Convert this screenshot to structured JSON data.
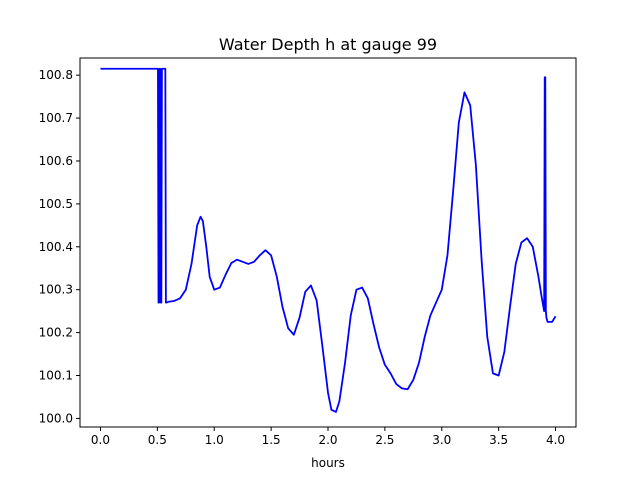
{
  "chart_data": {
    "type": "line",
    "title": "Water Depth h at gauge 99",
    "xlabel": "hours",
    "ylabel": "",
    "xlim": [
      -0.18,
      4.18
    ],
    "ylim": [
      99.98,
      100.84
    ],
    "xticks": [
      0.0,
      0.5,
      1.0,
      1.5,
      2.0,
      2.5,
      3.0,
      3.5,
      4.0
    ],
    "xtick_labels": [
      "0.0",
      "0.5",
      "1.0",
      "1.5",
      "2.0",
      "2.5",
      "3.0",
      "3.5",
      "4.0"
    ],
    "yticks": [
      100.0,
      100.1,
      100.2,
      100.3,
      100.4,
      100.5,
      100.6,
      100.7,
      100.8
    ],
    "ytick_labels": [
      "100.0",
      "100.1",
      "100.2",
      "100.3",
      "100.4",
      "100.5",
      "100.6",
      "100.7",
      "100.8"
    ],
    "grid": false,
    "legend": "none",
    "series": [
      {
        "color": "#0000ff",
        "x": [
          0.0,
          0.5,
          0.505,
          0.51,
          0.515,
          0.52,
          0.525,
          0.53,
          0.535,
          0.54,
          0.55,
          0.56,
          0.565,
          0.57,
          0.575,
          0.58,
          0.6,
          0.65,
          0.7,
          0.75,
          0.8,
          0.85,
          0.88,
          0.9,
          0.93,
          0.96,
          1.0,
          1.05,
          1.1,
          1.15,
          1.2,
          1.25,
          1.3,
          1.35,
          1.4,
          1.45,
          1.5,
          1.55,
          1.6,
          1.65,
          1.7,
          1.75,
          1.8,
          1.85,
          1.9,
          1.95,
          2.0,
          2.03,
          2.07,
          2.1,
          2.15,
          2.2,
          2.25,
          2.3,
          2.35,
          2.4,
          2.45,
          2.5,
          2.55,
          2.6,
          2.65,
          2.7,
          2.75,
          2.8,
          2.85,
          2.9,
          2.95,
          3.0,
          3.05,
          3.1,
          3.15,
          3.2,
          3.25,
          3.3,
          3.35,
          3.4,
          3.45,
          3.5,
          3.55,
          3.6,
          3.65,
          3.7,
          3.75,
          3.8,
          3.85,
          3.88,
          3.9,
          3.905,
          3.91,
          3.915,
          3.92,
          3.93,
          3.95,
          3.97,
          4.0
        ],
        "y": [
          100.815,
          100.815,
          100.815,
          100.27,
          100.27,
          100.815,
          100.815,
          100.27,
          100.27,
          100.815,
          100.815,
          100.815,
          100.815,
          100.815,
          100.27,
          100.27,
          100.272,
          100.274,
          100.28,
          100.3,
          100.36,
          100.45,
          100.47,
          100.46,
          100.4,
          100.33,
          100.3,
          100.305,
          100.335,
          100.362,
          100.37,
          100.365,
          100.36,
          100.365,
          100.38,
          100.392,
          100.38,
          100.33,
          100.26,
          100.21,
          100.195,
          100.235,
          100.295,
          100.31,
          100.275,
          100.17,
          100.06,
          100.02,
          100.015,
          100.04,
          100.13,
          100.24,
          100.3,
          100.305,
          100.28,
          100.22,
          100.165,
          100.125,
          100.105,
          100.08,
          100.07,
          100.068,
          100.09,
          100.13,
          100.19,
          100.24,
          100.27,
          100.3,
          100.38,
          100.53,
          100.69,
          100.76,
          100.73,
          100.59,
          100.37,
          100.19,
          100.105,
          100.1,
          100.155,
          100.26,
          100.36,
          100.41,
          100.42,
          100.4,
          100.33,
          100.28,
          100.25,
          100.795,
          100.795,
          100.25,
          100.235,
          100.225,
          100.225,
          100.225,
          100.238
        ]
      }
    ]
  }
}
